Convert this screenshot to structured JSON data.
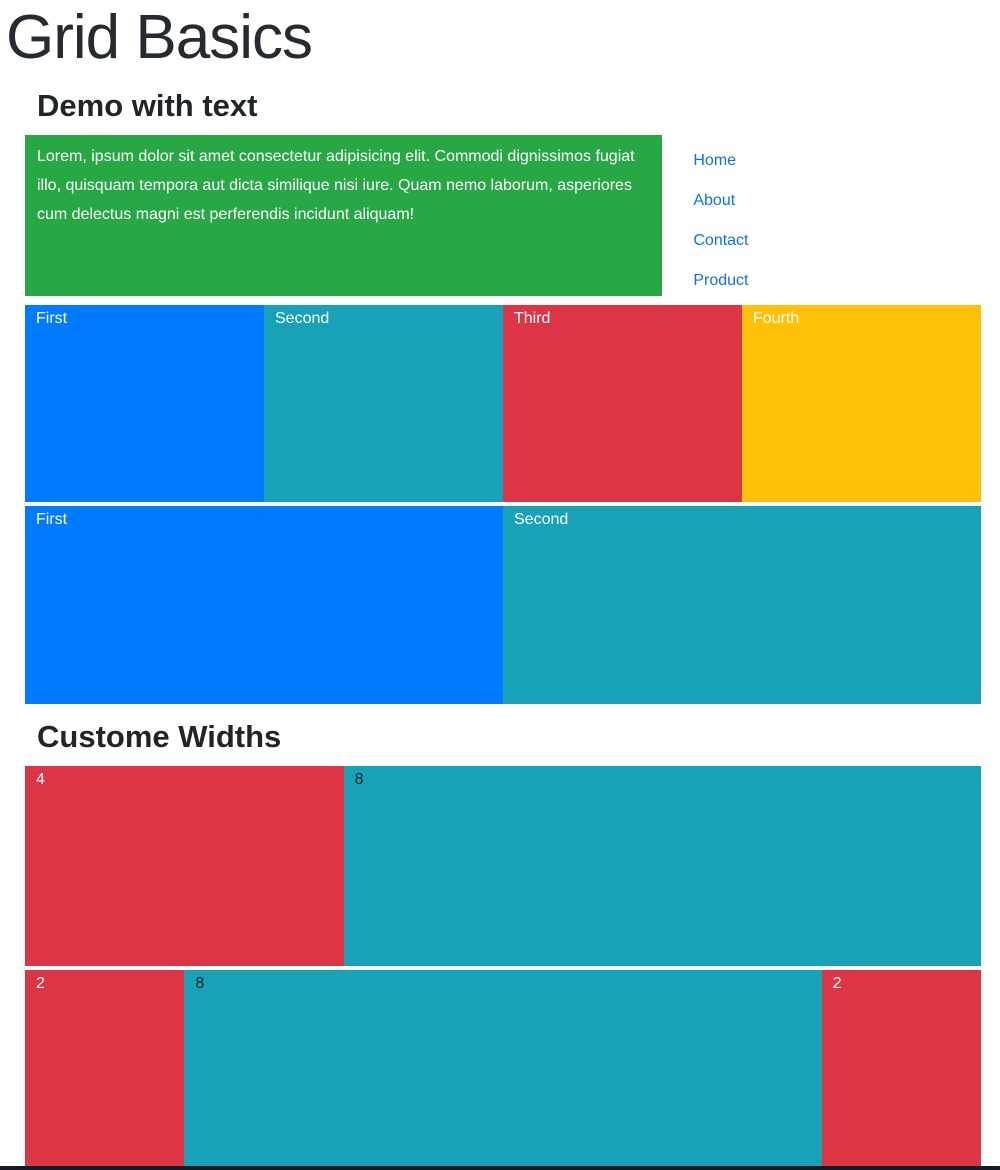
{
  "page": {
    "title": "Grid Basics",
    "demo_heading": "Demo with text",
    "custom_heading": "Custome Widths"
  },
  "intro": {
    "text": "Lorem, ipsum dolor sit amet consectetur adipisicing elit. Commodi dignissimos fugiat illo, quisquam tempora aut dicta similique nisi iure. Quam nemo laborum, asperiores cum delectus magni est perferendis incidunt aliquam!"
  },
  "nav": {
    "links": [
      {
        "label": "Home"
      },
      {
        "label": "About"
      },
      {
        "label": "Contact"
      },
      {
        "label": "Product"
      }
    ]
  },
  "grid": {
    "quarters": [
      {
        "label": "First",
        "color": "#007bff"
      },
      {
        "label": "Second",
        "color": "#17a2b8"
      },
      {
        "label": "Third",
        "color": "#dc3545"
      },
      {
        "label": "Fourth",
        "color": "#ffc107"
      }
    ],
    "halves": [
      {
        "label": "First",
        "color": "#007bff"
      },
      {
        "label": "Second",
        "color": "#17a2b8"
      }
    ],
    "custom_row1": [
      {
        "label": "4",
        "span": 4,
        "color": "#dc3545",
        "text_color": "#ffffff"
      },
      {
        "label": "8",
        "span": 8,
        "color": "#17a2b8",
        "text_color": "#212529"
      }
    ],
    "custom_row2": [
      {
        "label": "2",
        "span": 2,
        "color": "#dc3545",
        "text_color": "#ffffff"
      },
      {
        "label": "8",
        "span": 8,
        "color": "#17a2b8",
        "text_color": "#212529"
      },
      {
        "label": "2",
        "span": 2,
        "color": "#dc3545",
        "text_color": "#ffffff"
      }
    ]
  },
  "colors": {
    "green": "#28a745",
    "blue": "#007bff",
    "teal": "#17a2b8",
    "red": "#dc3545",
    "yellow": "#ffc107",
    "link_blue": "#0d6efd",
    "heading": "#212529",
    "bottom_bar": "#151a21"
  }
}
